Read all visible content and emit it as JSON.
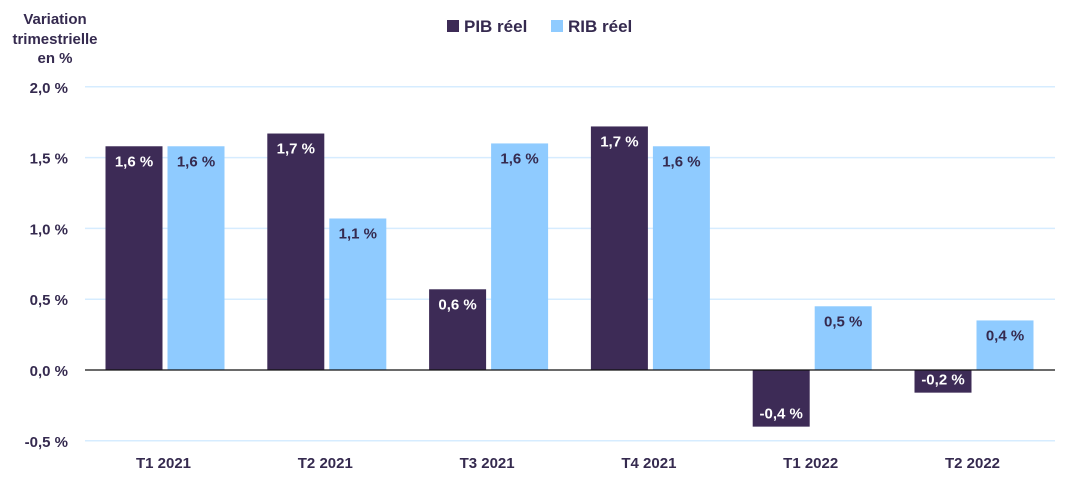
{
  "chart_data": {
    "type": "bar",
    "ylabel": "Variation trimestrielle en %",
    "categories": [
      "T1 2021",
      "T2 2021",
      "T3 2021",
      "T4 2021",
      "T1 2022",
      "T2 2022"
    ],
    "series": [
      {
        "name": "PIB réel",
        "color": "#3d2b56",
        "values": [
          1.58,
          1.67,
          0.57,
          1.72,
          -0.4,
          -0.16
        ],
        "labels": [
          "1,6 %",
          "1,7 %",
          "0,6 %",
          "1,7 %",
          "-0,4 %",
          "-0,2 %"
        ]
      },
      {
        "name": "RIB réel",
        "color": "#8fcbff",
        "values": [
          1.58,
          1.07,
          1.6,
          1.58,
          0.45,
          0.35
        ],
        "labels": [
          "1,6 %",
          "1,1 %",
          "1,6 %",
          "1,6 %",
          "0,5 %",
          "0,4 %"
        ]
      }
    ],
    "yticks": [
      2.0,
      1.5,
      1.0,
      0.5,
      0.0,
      -0.5
    ],
    "ytick_labels": [
      "2,0 %",
      "1,5 %",
      "1,0 %",
      "0,5 %",
      "0,0 %",
      "-0,5 %"
    ],
    "ylim": [
      -0.5,
      2.0
    ],
    "grid": true,
    "legend_position": "top-center"
  }
}
